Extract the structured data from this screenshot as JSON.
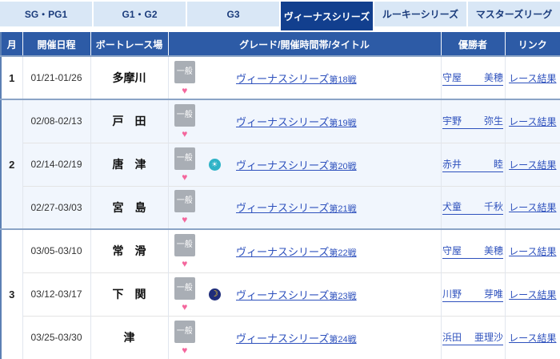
{
  "tabs": {
    "items": [
      {
        "label": "SG・PG1",
        "active": false
      },
      {
        "label": "G1・G2",
        "active": false
      },
      {
        "label": "G3",
        "active": false
      },
      {
        "label": "ヴィーナスシリーズ",
        "active": true
      },
      {
        "label": "ルーキーシリーズ",
        "active": false
      },
      {
        "label": "マスターズリーグ",
        "active": false
      }
    ]
  },
  "icons": {
    "heart": "♥",
    "morning": "☀",
    "night": "☽"
  },
  "colors": {
    "active_tab": "#123f8e",
    "inactive_tab_bg": "#d9e7f6",
    "header_bg": "#2d5ba6",
    "tinted_row_bg": "#f1f6fd",
    "block_separator": "#8ba4c6",
    "link_blue": "#2e51bd",
    "badge_gray": "#a9aeb5",
    "heart_pink": "#f4679d",
    "morning_icon_teal": "#2fb3c7",
    "night_icon_navy": "#1f2d7a",
    "night_moon_yellow": "#ffd21e"
  },
  "table": {
    "headers": {
      "month": "月",
      "date": "開催日程",
      "venue": "ボートレース場",
      "grade": "グレード/開催時間帯/タイトル",
      "winner": "優勝者",
      "link": "リンク"
    },
    "grade_badge_label": "一般",
    "race_result_label": "レース結果",
    "blocks": [
      {
        "month": "1",
        "tinted": false,
        "rows": [
          {
            "date": "01/21-01/26",
            "venue": "多摩川",
            "time_icon": "",
            "title": "ヴィーナスシリーズ",
            "round": "第18戦",
            "winner_family": "守屋",
            "winner_given": "美穂"
          }
        ]
      },
      {
        "month": "2",
        "tinted": true,
        "rows": [
          {
            "date": "02/08-02/13",
            "venue": "戸　田",
            "time_icon": "",
            "title": "ヴィーナスシリーズ",
            "round": "第19戦",
            "winner_family": "宇野",
            "winner_given": "弥生"
          },
          {
            "date": "02/14-02/19",
            "venue": "唐　津",
            "time_icon": "morning",
            "title": "ヴィーナスシリーズ",
            "round": "第20戦",
            "winner_family": "赤井",
            "winner_given": "睦"
          },
          {
            "date": "02/27-03/03",
            "venue": "宮　島",
            "time_icon": "",
            "title": "ヴィーナスシリーズ",
            "round": "第21戦",
            "winner_family": "犬童",
            "winner_given": "千秋"
          }
        ]
      },
      {
        "month": "3",
        "tinted": false,
        "rows": [
          {
            "date": "03/05-03/10",
            "venue": "常　滑",
            "time_icon": "",
            "title": "ヴィーナスシリーズ",
            "round": "第22戦",
            "winner_family": "守屋",
            "winner_given": "美穂"
          },
          {
            "date": "03/12-03/17",
            "venue": "下　関",
            "time_icon": "night",
            "title": "ヴィーナスシリーズ",
            "round": "第23戦",
            "winner_family": "川野",
            "winner_given": "芽唯"
          },
          {
            "date": "03/25-03/30",
            "venue": "津",
            "time_icon": "",
            "title": "ヴィーナスシリーズ",
            "round": "第24戦",
            "winner_family": "浜田",
            "winner_given": "亜理沙"
          }
        ]
      }
    ]
  }
}
